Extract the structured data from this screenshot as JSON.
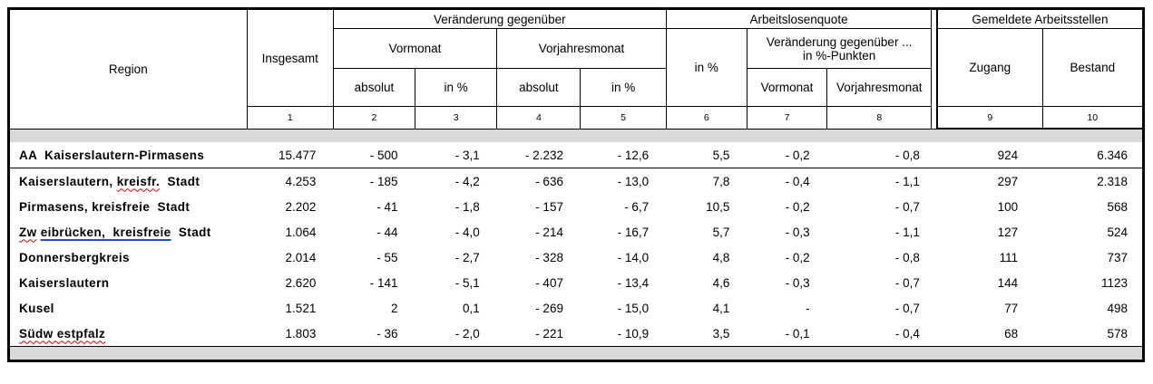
{
  "table": {
    "header": {
      "region": "Region",
      "insgesamt": "Insgesamt",
      "veraenderung": "Veränderung gegenüber",
      "vormonat": "Vormonat",
      "vorjahresmonat": "Vorjahresmonat",
      "vm_absolut": "absolut",
      "vm_in_prozent": "in %",
      "vj_absolut": "absolut",
      "vj_in_prozent": "in %",
      "arbeitslosenquote": "Arbeitslosenquote",
      "alq_in_prozent": "in %",
      "alq_veraenderung_line1": "Veränderung gegenüber ...",
      "alq_veraenderung_line2": "in %-Punkten",
      "pkt_vormonat": "Vormonat",
      "pkt_vorjahresmonat": "Vorjahresmonat",
      "stellen": "Gemeldete Arbeitsstellen",
      "zugang": "Zugang",
      "bestand": "Bestand",
      "col_numbers": [
        "1",
        "2",
        "3",
        "4",
        "5",
        "6",
        "7",
        "8",
        "9",
        "10"
      ]
    },
    "rows": [
      {
        "is_total": true,
        "region_parts": [
          {
            "text": "AA  Kaiserslautern-Pirmasens",
            "deco": "none"
          }
        ],
        "values": [
          "15.477",
          "- 500",
          "- 3,1",
          "- 2.232",
          "- 12,6",
          "5,5",
          "- 0,2",
          "- 0,8",
          "924",
          "6.346"
        ]
      },
      {
        "is_total": false,
        "region_parts": [
          {
            "text": "Kaiserslautern, ",
            "deco": "none"
          },
          {
            "text": "kreisfr.",
            "deco": "squiggle"
          },
          {
            "text": "  Stadt",
            "deco": "none"
          }
        ],
        "values": [
          "4.253",
          "- 185",
          "- 4,2",
          "- 636",
          "- 13,0",
          "7,8",
          "- 0,4",
          "- 1,1",
          "297",
          "2.318"
        ]
      },
      {
        "is_total": false,
        "region_parts": [
          {
            "text": "Pirmasens, kreisfreie  Stadt",
            "deco": "none"
          }
        ],
        "values": [
          "2.202",
          "- 41",
          "- 1,8",
          "- 157",
          "- 6,7",
          "10,5",
          "- 0,2",
          "- 0,7",
          "100",
          "568"
        ]
      },
      {
        "is_total": false,
        "region_parts": [
          {
            "text": "Zw",
            "deco": "squiggle"
          },
          {
            "text": " ",
            "deco": "none"
          },
          {
            "text": "eibrücken,  kreisfreie",
            "deco": "blue"
          },
          {
            "text": "  Stadt",
            "deco": "none"
          }
        ],
        "values": [
          "1.064",
          "- 44",
          "- 4,0",
          "- 214",
          "- 16,7",
          "5,7",
          "- 0,3",
          "- 1,1",
          "127",
          "524"
        ]
      },
      {
        "is_total": false,
        "region_parts": [
          {
            "text": "Donnersbergkreis",
            "deco": "none"
          }
        ],
        "values": [
          "2.014",
          "- 55",
          "- 2,7",
          "- 328",
          "- 14,0",
          "4,8",
          "- 0,2",
          "- 0,8",
          "111",
          "737"
        ]
      },
      {
        "is_total": false,
        "region_parts": [
          {
            "text": "Kaiserslautern",
            "deco": "none"
          }
        ],
        "values": [
          "2.620",
          "- 141",
          "- 5,1",
          "- 407",
          "- 13,4",
          "4,6",
          "- 0,3",
          "- 0,7",
          "144",
          "1123"
        ]
      },
      {
        "is_total": false,
        "region_parts": [
          {
            "text": "Kusel",
            "deco": "none"
          }
        ],
        "values": [
          "1.521",
          "2",
          "0,1",
          "- 269",
          "- 15,0",
          "4,1",
          "-",
          "- 0,7",
          "77",
          "498"
        ]
      },
      {
        "is_total": false,
        "region_parts": [
          {
            "text": "Südw estpfalz",
            "deco": "squiggle"
          }
        ],
        "values": [
          "1.803",
          "- 36",
          "- 2,0",
          "- 221",
          "- 10,9",
          "3,5",
          "- 0,1",
          "- 0,4",
          "68",
          "578"
        ]
      }
    ]
  },
  "colors": {
    "band_gray": "#d9d9d9",
    "border_black": "#000000",
    "squiggle_red": "#d40000",
    "underline_blue": "#1f4fd0"
  }
}
